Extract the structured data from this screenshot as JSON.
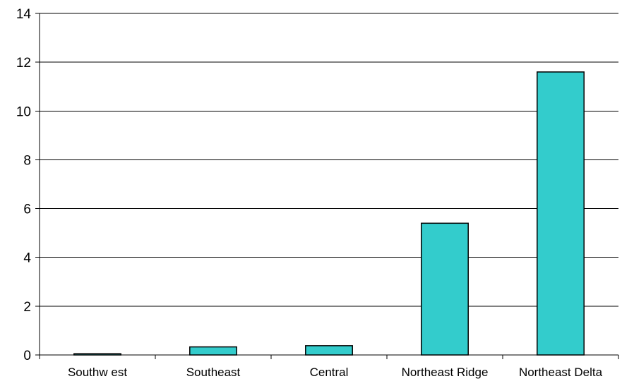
{
  "chart_data": {
    "type": "bar",
    "categories": [
      "Southw est",
      "Southeast",
      "Central",
      "Northeast Ridge",
      "Northeast Delta"
    ],
    "values": [
      0.05,
      0.33,
      0.38,
      5.4,
      11.6
    ],
    "ylim": [
      0,
      14
    ],
    "yticks": [
      "0",
      "2",
      "4",
      "6",
      "8",
      "10",
      "12",
      "14"
    ],
    "grid": true,
    "legend": "none",
    "colors": {
      "bar_fill": "#33cccc",
      "bar_stroke": "#000000",
      "grid": "#000000",
      "axis": "#000000"
    }
  }
}
